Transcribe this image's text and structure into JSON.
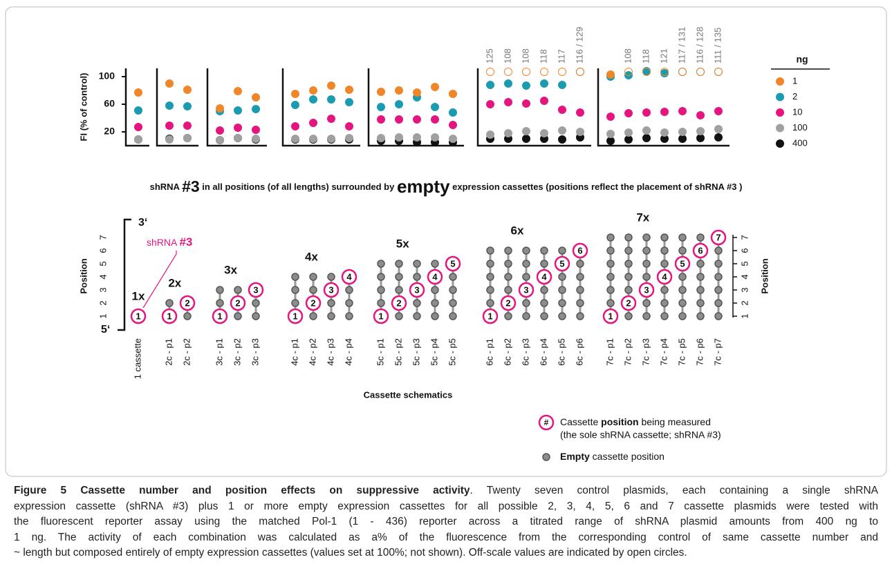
{
  "chart_data": {
    "type": "dot",
    "ylabel": "FI (% of control)",
    "ylim": [
      0,
      112
    ],
    "yticks": [
      20,
      60,
      100
    ],
    "legend_title": "ng",
    "series": [
      {
        "name": "1",
        "color": "#f0862a",
        "values": [
          77,
          90,
          81,
          54,
          79,
          70,
          75,
          80,
          87,
          81,
          78,
          80,
          77,
          85,
          75,
          null,
          null,
          null,
          null,
          null,
          null,
          103,
          null,
          null,
          null,
          null,
          null,
          null
        ]
      },
      {
        "name": "2",
        "color": "#1b9bb0",
        "values": [
          51,
          58,
          57,
          50,
          51,
          53,
          59,
          67,
          67,
          63,
          56,
          60,
          70,
          56,
          48,
          88,
          90,
          87,
          90,
          88,
          null,
          100,
          102,
          108,
          105,
          null,
          null,
          null
        ]
      },
      {
        "name": "10",
        "color": "#e5157f",
        "values": [
          27,
          29,
          29,
          22,
          26,
          23,
          28,
          33,
          39,
          28,
          38,
          38,
          38,
          38,
          30,
          60,
          63,
          61,
          65,
          52,
          48,
          42,
          47,
          48,
          49,
          50,
          44,
          50
        ]
      },
      {
        "name": "100",
        "color": "#a0a0a0",
        "values": [
          9,
          9,
          11,
          8,
          11,
          10,
          10,
          10,
          10,
          11,
          11,
          12,
          12,
          12,
          10,
          16,
          18,
          21,
          18,
          22,
          20,
          17,
          19,
          22,
          19,
          20,
          21,
          24
        ]
      },
      {
        "name": "400",
        "color": "#111111",
        "values": [
          9,
          10,
          11,
          8,
          11,
          9,
          9,
          9,
          9,
          9,
          7,
          7,
          5,
          5,
          5,
          10,
          10,
          10,
          10,
          9,
          12,
          7,
          9,
          11,
          10,
          10,
          11,
          12
        ]
      }
    ],
    "off_scale_labels": [
      null,
      null,
      null,
      null,
      null,
      null,
      null,
      null,
      null,
      null,
      null,
      null,
      null,
      null,
      null,
      "125",
      "108",
      "108",
      "118",
      "117",
      "116 / 129",
      null,
      "108",
      "118",
      "121",
      "117 / 131",
      "116 / 128",
      "111 / 135"
    ]
  },
  "middle_title": [
    "shRNA ",
    "#3",
    " in all positions (of all lengths) surrounded by ",
    "empty",
    " expression cassettes (positions reflect the placement of shRNA #3 )"
  ],
  "schematic": {
    "ylabel": "Position",
    "yticks": [
      1,
      2,
      3,
      4,
      5,
      6,
      7
    ],
    "top_label": "3‘",
    "bottom_label": "5‘",
    "xlabel": "Cassette schematics",
    "annotation": [
      "shRNA ",
      "#3"
    ],
    "groups": [
      {
        "label": "1x",
        "cassettes": 1,
        "columns": [
          {
            "label": "1 cassette",
            "position": 1
          }
        ]
      },
      {
        "label": "2x",
        "cassettes": 2,
        "columns": [
          {
            "label": "2c - p1",
            "position": 1
          },
          {
            "label": "2c - p2",
            "position": 2
          }
        ]
      },
      {
        "label": "3x",
        "cassettes": 3,
        "columns": [
          {
            "label": "3c - p1",
            "position": 1
          },
          {
            "label": "3c - p2",
            "position": 2
          },
          {
            "label": "3c - p3",
            "position": 3
          }
        ]
      },
      {
        "label": "4x",
        "cassettes": 4,
        "columns": [
          {
            "label": "4c - p1",
            "position": 1
          },
          {
            "label": "4c - p2",
            "position": 2
          },
          {
            "label": "4c - p3",
            "position": 3
          },
          {
            "label": "4c - p4",
            "position": 4
          }
        ]
      },
      {
        "label": "5x",
        "cassettes": 5,
        "columns": [
          {
            "label": "5c - p1",
            "position": 1
          },
          {
            "label": "5c - p2",
            "position": 2
          },
          {
            "label": "5c - p3",
            "position": 3
          },
          {
            "label": "5c - p4",
            "position": 4
          },
          {
            "label": "5c - p5",
            "position": 5
          }
        ]
      },
      {
        "label": "6x",
        "cassettes": 6,
        "columns": [
          {
            "label": "6c - p1",
            "position": 1
          },
          {
            "label": "6c - p2",
            "position": 2
          },
          {
            "label": "6c - p3",
            "position": 3
          },
          {
            "label": "6c - p4",
            "position": 4
          },
          {
            "label": "6c - p5",
            "position": 5
          },
          {
            "label": "6c - p6",
            "position": 6
          }
        ]
      },
      {
        "label": "7x",
        "cassettes": 7,
        "columns": [
          {
            "label": "7c - p1",
            "position": 1
          },
          {
            "label": "7c - p2",
            "position": 2
          },
          {
            "label": "7c - p3",
            "position": 3
          },
          {
            "label": "7c - p4",
            "position": 4
          },
          {
            "label": "7c - p5",
            "position": 5
          },
          {
            "label": "7c - p6",
            "position": 6
          },
          {
            "label": "7c - p7",
            "position": 7
          }
        ]
      }
    ],
    "legend": {
      "symbol": "#",
      "measured": [
        "Cassette ",
        "position",
        " being measured"
      ],
      "measured_note": "(the sole shRNA cassette; shRNA #3)",
      "empty": [
        "Empty",
        " cassette position"
      ]
    }
  },
  "caption": {
    "label": "Figure 5",
    "title": "Cassette number and position effects on suppressive activity",
    "lines": [
      ". Twenty seven control plasmids, each containing a single shRNA",
      "expression cassette (shRNA #3) plus 1 or more empty expression cassettes for all possible 2, 3, 4, 5, 6 and 7 cassette plasmids were tested with",
      "the fluorescent reporter assay using the matched Pol-1 (1 - 436) reporter across a titrated range of shRNA plasmid amounts from 400 ng to",
      "1 ng. The activity of each combination was calculated as a% of the fluorescence from the corresponding control of same cassette number and",
      "~ length but composed entirely of empty expression cassettes (values set at 100%; not shown). Off-scale values are indicated by open circles."
    ]
  }
}
